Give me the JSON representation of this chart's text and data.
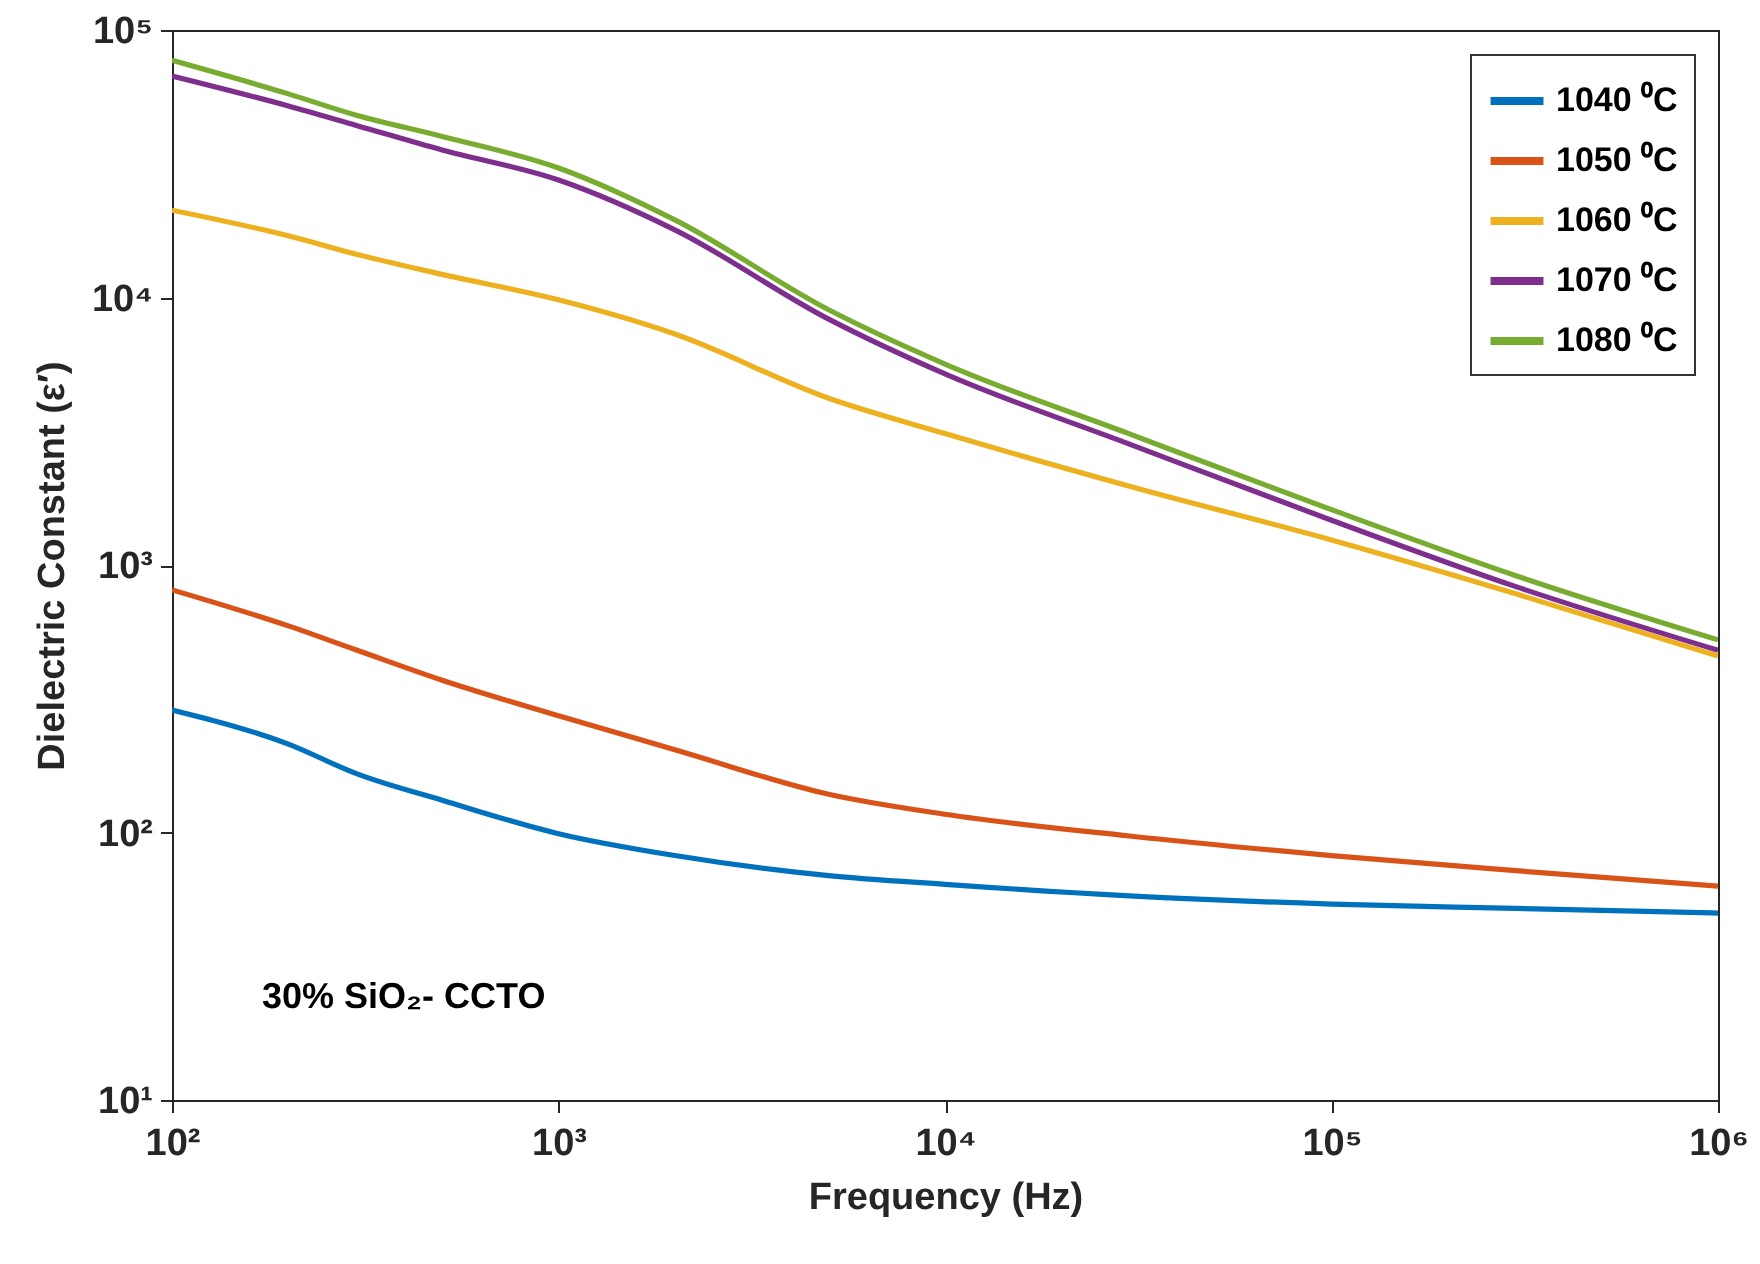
{
  "chart_data": {
    "type": "line",
    "xlabel": "Frequency (Hz)",
    "ylabel": "Dielectric Constant (ε′)",
    "log": "xy",
    "legend": "top right",
    "annotations": [
      "30% SiO₂- CCTO"
    ],
    "x": [
      100,
      200,
      300,
      500,
      1000,
      2000,
      5000,
      10000,
      30000,
      100000,
      300000,
      1000000
    ],
    "xlim": [
      100,
      1000000
    ],
    "xticks": [
      {
        "value": 100,
        "label": "10²"
      },
      {
        "value": 1000,
        "label": "10³"
      },
      {
        "value": 10000,
        "label": "10⁴"
      },
      {
        "value": 100000,
        "label": "10⁵"
      },
      {
        "value": 1000000,
        "label": "10⁶"
      }
    ],
    "ylim": [
      10,
      100000
    ],
    "yticks": [
      {
        "value": 10,
        "label": "10¹"
      },
      {
        "value": 100,
        "label": "10²"
      },
      {
        "value": 1000,
        "label": "10³"
      },
      {
        "value": 10000,
        "label": "10⁴"
      },
      {
        "value": 100000,
        "label": "10⁵"
      }
    ],
    "series": [
      {
        "name": "1040 ⁰C",
        "color": "#0072bd",
        "values": [
          287,
          214,
          166,
          132,
          99,
          82,
          69,
          64,
          58,
          54,
          52,
          50
        ]
      },
      {
        "name": "1050 ⁰C",
        "color": "#d95319",
        "values": [
          807,
          592,
          481,
          371,
          273,
          204,
          139,
          117,
          97,
          82,
          72,
          63
        ]
      },
      {
        "name": "1060 ⁰C",
        "color": "#edb120",
        "values": [
          21200,
          17000,
          14500,
          12200,
          9800,
          7300,
          4200,
          3100,
          1970,
          1240,
          780,
          457
        ]
      },
      {
        "name": "1070 ⁰C",
        "color": "#7e2f8e",
        "values": [
          67300,
          52000,
          44000,
          35600,
          27500,
          17900,
          8300,
          5180,
          2830,
          1470,
          830,
          480
        ]
      },
      {
        "name": "1080 ⁰C",
        "color": "#77ac30",
        "values": [
          77000,
          57700,
          48000,
          40000,
          30500,
          19500,
          9000,
          5640,
          3090,
          1610,
          912,
          525
        ]
      }
    ]
  }
}
